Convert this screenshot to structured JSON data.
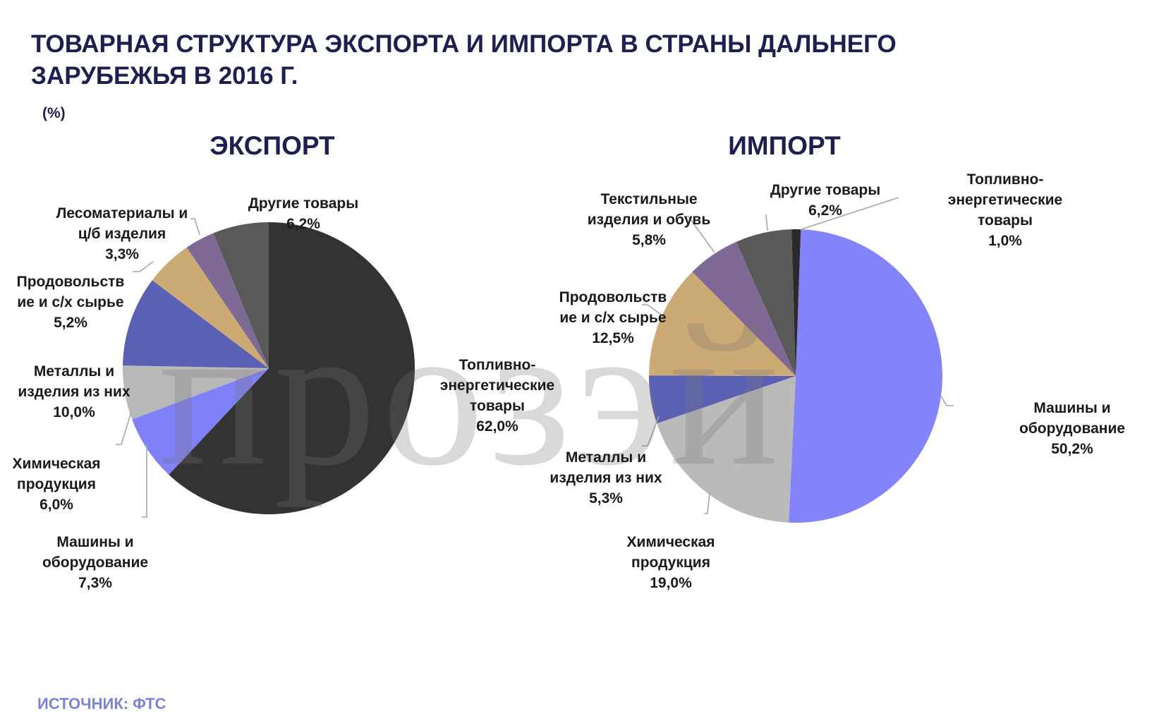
{
  "title": "ТОВАРНАЯ СТРУКТУРА ЭКСПОРТА И ИМПОРТА В СТРАНЫ ДАЛЬНЕГО ЗАРУБЕЖЬЯ В 2016 Г.",
  "unit": "(%)",
  "source": "ИСТОЧНИК: ФТС",
  "watermark": "прозэй",
  "chart_data": [
    {
      "type": "pie",
      "title": "ЭКСПОРТ",
      "unit": "%",
      "slices": [
        {
          "label": "Топливно-\nэнергетические\nтовары",
          "value": 62.0,
          "value_label": "62,0%",
          "color": "#333333"
        },
        {
          "label": "Машины и\nоборудование",
          "value": 7.3,
          "value_label": "7,3%",
          "color": "#8080f8"
        },
        {
          "label": "Химическая\nпродукция",
          "value": 6.0,
          "value_label": "6,0%",
          "color": "#b8b8b8"
        },
        {
          "label": "Металлы и\nизделия из них",
          "value": 10.0,
          "value_label": "10,0%",
          "color": "#5a60b4"
        },
        {
          "label": "Продовольств\nие и с/х сырье",
          "value": 5.2,
          "value_label": "5,2%",
          "color": "#ccaa74"
        },
        {
          "label": "Лесоматериалы и\nц/б изделия",
          "value": 3.3,
          "value_label": "3,3%",
          "color": "#7e6a94"
        },
        {
          "label": "Другие товары",
          "value": 6.2,
          "value_label": "6,2%",
          "color": "#595959"
        }
      ]
    },
    {
      "type": "pie",
      "title": "ИМПОРТ",
      "unit": "%",
      "slices": [
        {
          "label": "Машины и\nоборудование",
          "value": 50.2,
          "value_label": "50,2%",
          "color": "#8484fa"
        },
        {
          "label": "Химическая\nпродукция",
          "value": 19.0,
          "value_label": "19,0%",
          "color": "#bababa"
        },
        {
          "label": "Металлы и\nизделия из них",
          "value": 5.3,
          "value_label": "5,3%",
          "color": "#5a60b4"
        },
        {
          "label": "Продовольств\nие и с/х сырье",
          "value": 12.5,
          "value_label": "12,5%",
          "color": "#ccaa74"
        },
        {
          "label": "Текстильные\nизделия и обувь",
          "value": 5.8,
          "value_label": "5,8%",
          "color": "#7e6a94"
        },
        {
          "label": "Другие товары",
          "value": 6.2,
          "value_label": "6,2%",
          "color": "#595959"
        },
        {
          "label": "Топливно-\nэнергетические\nтовары",
          "value": 1.0,
          "value_label": "1,0%",
          "color": "#2a2a2a"
        }
      ]
    }
  ]
}
